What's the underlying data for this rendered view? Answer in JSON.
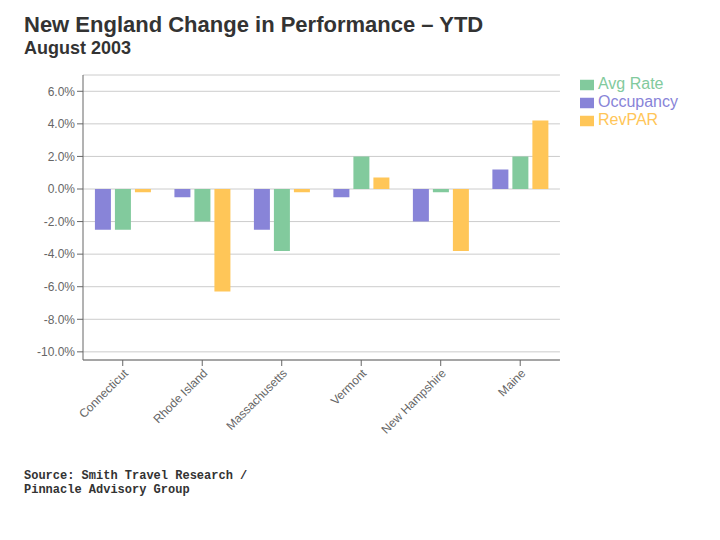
{
  "chart_data": {
    "type": "bar",
    "title": "New England Change in Performance – YTD",
    "subtitle": "August 2003",
    "categories": [
      "Connecticut",
      "Rhode Island",
      "Massachusetts",
      "Vermont",
      "New Hampshire",
      "Maine"
    ],
    "series": [
      {
        "name": "Occupancy",
        "color": "#8884d8",
        "values": [
          -2.5,
          -0.5,
          -2.5,
          -0.5,
          -2.0,
          1.2
        ]
      },
      {
        "name": "Avg Rate",
        "color": "#82ca9d",
        "values": [
          -2.5,
          -2.0,
          -3.8,
          2.0,
          -0.2,
          2.0
        ]
      },
      {
        "name": "RevPAR",
        "color": "#ffc658",
        "values": [
          -0.2,
          -6.3,
          -0.2,
          0.7,
          -3.8,
          4.2
        ]
      }
    ],
    "ylim": [
      -10.5,
      7.0
    ],
    "yticks": [
      {
        "value": -10.0,
        "label": "-10.0%"
      },
      {
        "value": -8.0,
        "label": "-8.0%"
      },
      {
        "value": -6.0,
        "label": "-6.0%"
      },
      {
        "value": -4.0,
        "label": "-4.0%"
      },
      {
        "value": -2.0,
        "label": "-2.0%"
      },
      {
        "value": 0.0,
        "label": "0.0%"
      },
      {
        "value": 2.0,
        "label": "2.0%"
      },
      {
        "value": 4.0,
        "label": "4.0%"
      },
      {
        "value": 6.0,
        "label": "6.0%"
      }
    ],
    "grid": true,
    "legend": "right",
    "annotations": [
      "Source: Smith Travel Research /\nPinnacle Advisory Group"
    ]
  }
}
